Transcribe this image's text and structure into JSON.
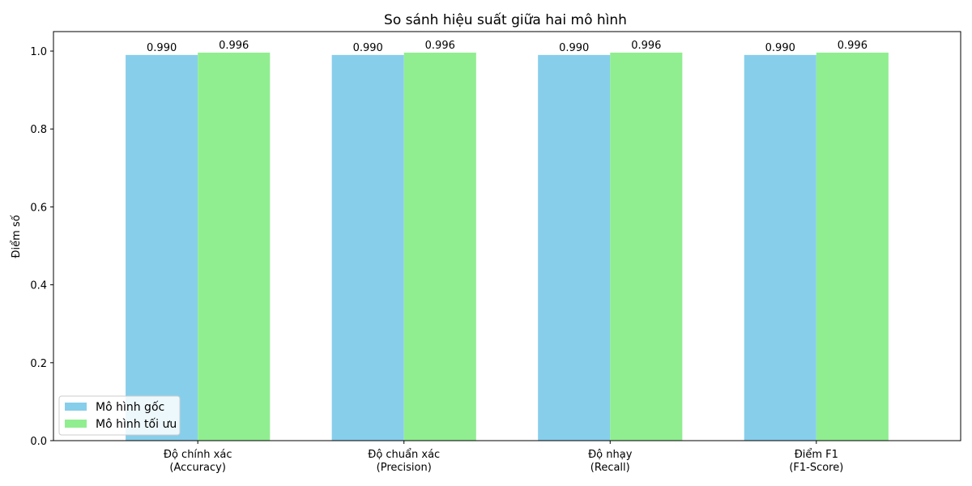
{
  "chart_data": {
    "type": "bar",
    "title": "So sánh hiệu suất giữa hai mô hình",
    "xlabel": "",
    "ylabel": "Điểm số",
    "ylim": [
      0,
      1.05
    ],
    "yticks": [
      "0.0",
      "0.2",
      "0.4",
      "0.6",
      "0.8",
      "1.0"
    ],
    "categories": [
      {
        "line1": "Độ chính xác",
        "line2": "(Accuracy)"
      },
      {
        "line1": "Độ chuẩn xác",
        "line2": "(Precision)"
      },
      {
        "line1": "Độ nhạy",
        "line2": "(Recall)"
      },
      {
        "line1": "Điểm F1",
        "line2": "(F1-Score)"
      }
    ],
    "series": [
      {
        "name": "Mô hình gốc",
        "color": "#87ceeb",
        "values": [
          0.99,
          0.99,
          0.99,
          0.99
        ],
        "labels": [
          "0.990",
          "0.990",
          "0.990",
          "0.990"
        ]
      },
      {
        "name": "Mô hình tối ưu",
        "color": "#90ee90",
        "values": [
          0.996,
          0.996,
          0.996,
          0.996
        ],
        "labels": [
          "0.996",
          "0.996",
          "0.996",
          "0.996"
        ]
      }
    ],
    "legend": "lower-left",
    "grid": false
  }
}
